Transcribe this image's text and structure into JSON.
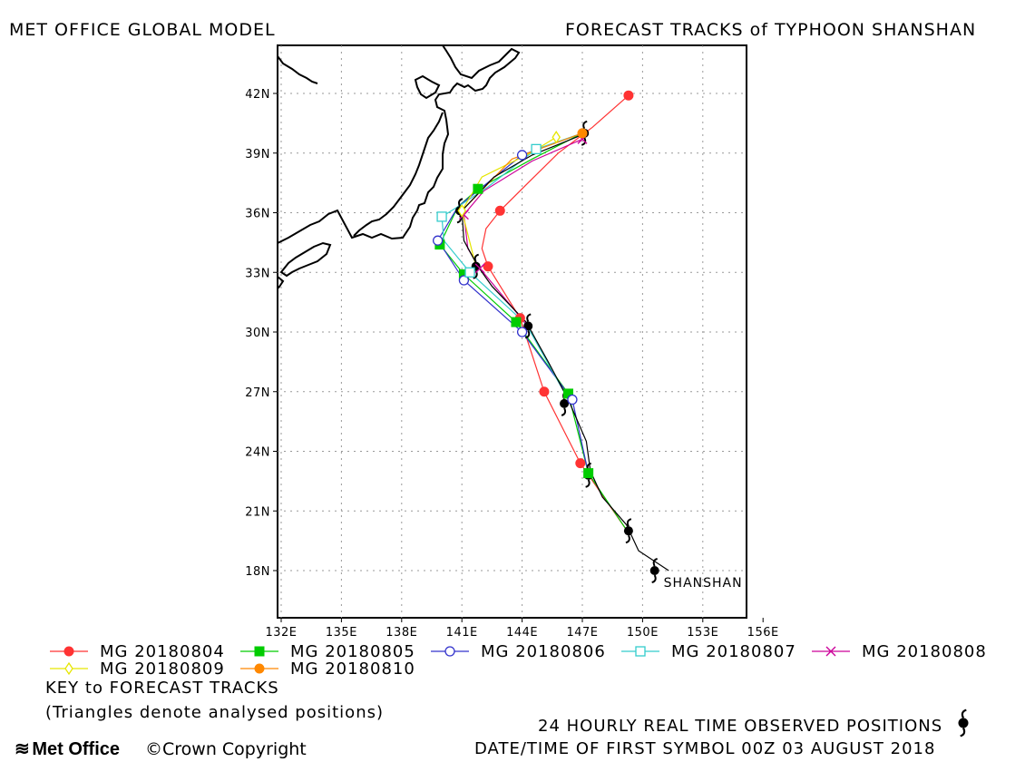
{
  "header": {
    "left_title": "MET OFFICE GLOBAL MODEL",
    "right_title": "FORECAST TRACKS of TYPHOON SHANSHAN"
  },
  "chart_data": {
    "type": "map-track",
    "xlim": [
      131.5,
      160.0
    ],
    "ylim": [
      15.6,
      44.5
    ],
    "x_ticks": [
      "132E",
      "135E",
      "138E",
      "141E",
      "144E",
      "147E",
      "150E",
      "153E",
      "156E"
    ],
    "x_tick_values": [
      132,
      135,
      138,
      141,
      144,
      147,
      150,
      153,
      156
    ],
    "y_ticks": [
      "42N",
      "39N",
      "36N",
      "33N",
      "30N",
      "27N",
      "24N",
      "21N",
      "18N"
    ],
    "y_tick_values": [
      42,
      39,
      36,
      33,
      30,
      27,
      24,
      21,
      18
    ],
    "grid": true,
    "storm_label": "SHANSHAN",
    "observed_track": {
      "name": "24 HOURLY REAL TIME OBSERVED POSITIONS",
      "color": "#000000",
      "points": [
        [
          151.3,
          18.0
        ],
        [
          149.8,
          19.0
        ],
        [
          149.2,
          20.3
        ],
        [
          148.0,
          21.7
        ],
        [
          147.4,
          23.0
        ],
        [
          147.2,
          24.5
        ],
        [
          146.3,
          26.6
        ],
        [
          145.3,
          28.5
        ],
        [
          144.2,
          30.5
        ],
        [
          142.5,
          32.3
        ],
        [
          141.8,
          33.3
        ],
        [
          141.1,
          34.6
        ],
        [
          141.0,
          36.1
        ],
        [
          142.6,
          37.8
        ],
        [
          144.5,
          38.9
        ],
        [
          147.2,
          40.0
        ]
      ],
      "symbols": [
        [
          150.6,
          18.0
        ],
        [
          149.3,
          20.0
        ],
        [
          147.3,
          22.8
        ],
        [
          146.1,
          26.4
        ],
        [
          144.3,
          30.3
        ],
        [
          141.7,
          33.3
        ],
        [
          140.9,
          36.1
        ],
        [
          147.1,
          40.0
        ]
      ]
    },
    "series": [
      {
        "name": "MG 20180804",
        "color": "#ff3333",
        "marker": "filled-circle",
        "points": [
          [
            149.3,
            19.9
          ],
          [
            146.9,
            23.4
          ],
          [
            145.1,
            27.0
          ],
          [
            143.9,
            30.7
          ],
          [
            142.3,
            33.3
          ],
          [
            142.0,
            34.2
          ],
          [
            142.2,
            35.2
          ],
          [
            142.9,
            36.1
          ],
          [
            144.3,
            37.5
          ],
          [
            145.8,
            39.0
          ],
          [
            147.5,
            40.3
          ],
          [
            149.3,
            41.9
          ]
        ],
        "markers": [
          [
            146.9,
            23.4
          ],
          [
            145.1,
            27.0
          ],
          [
            143.9,
            30.7
          ],
          [
            142.3,
            33.3
          ],
          [
            142.9,
            36.1
          ],
          [
            149.3,
            41.9
          ]
        ]
      },
      {
        "name": "MG 20180805",
        "color": "#00cc00",
        "marker": "filled-square",
        "points": [
          [
            149.3,
            19.9
          ],
          [
            147.3,
            22.9
          ],
          [
            146.3,
            26.9
          ],
          [
            143.7,
            30.5
          ],
          [
            141.1,
            32.9
          ],
          [
            139.9,
            34.4
          ],
          [
            140.8,
            36.3
          ],
          [
            141.8,
            37.2
          ],
          [
            144.5,
            38.7
          ],
          [
            147.0,
            40.0
          ]
        ],
        "markers": [
          [
            147.3,
            22.9
          ],
          [
            146.3,
            26.9
          ],
          [
            143.7,
            30.5
          ],
          [
            141.1,
            32.9
          ],
          [
            139.9,
            34.4
          ],
          [
            141.8,
            37.2
          ]
        ]
      },
      {
        "name": "MG 20180806",
        "color": "#3333cc",
        "marker": "open-circle",
        "points": [
          [
            147.3,
            22.9
          ],
          [
            146.5,
            26.6
          ],
          [
            144.0,
            30.0
          ],
          [
            141.1,
            32.6
          ],
          [
            140.2,
            34.0
          ],
          [
            139.8,
            34.6
          ],
          [
            140.8,
            36.3
          ],
          [
            144.0,
            38.9
          ],
          [
            147.0,
            40.0
          ]
        ],
        "markers": [
          [
            146.5,
            26.6
          ],
          [
            144.0,
            30.0
          ],
          [
            141.1,
            32.6
          ],
          [
            139.8,
            34.6
          ],
          [
            144.0,
            38.9
          ]
        ]
      },
      {
        "name": "MG 20180807",
        "color": "#33cccc",
        "marker": "open-square",
        "points": [
          [
            146.3,
            26.6
          ],
          [
            144.2,
            30.4
          ],
          [
            141.4,
            33.0
          ],
          [
            140.1,
            34.6
          ],
          [
            140.0,
            35.8
          ],
          [
            140.8,
            36.3
          ],
          [
            142.3,
            37.3
          ],
          [
            144.7,
            39.2
          ],
          [
            147.0,
            40.0
          ]
        ],
        "markers": [
          [
            141.4,
            33.0
          ],
          [
            140.0,
            35.8
          ],
          [
            144.7,
            39.2
          ]
        ]
      },
      {
        "name": "MG 20180808",
        "color": "#cc0099",
        "marker": "cross",
        "points": [
          [
            144.2,
            30.4
          ],
          [
            141.9,
            33.2
          ],
          [
            141.3,
            34.2
          ],
          [
            141.1,
            35.9
          ],
          [
            142.1,
            37.1
          ],
          [
            144.5,
            38.6
          ],
          [
            147.0,
            39.7
          ]
        ],
        "markers": [
          [
            141.9,
            33.2
          ],
          [
            141.1,
            35.9
          ],
          [
            147.0,
            39.7
          ]
        ]
      },
      {
        "name": "MG 20180809",
        "color": "#e6e600",
        "marker": "open-diamond",
        "points": [
          [
            141.7,
            33.3
          ],
          [
            141.0,
            36.1
          ],
          [
            142.0,
            37.8
          ],
          [
            144.4,
            39.0
          ],
          [
            145.7,
            39.8
          ]
        ],
        "markers": [
          [
            141.0,
            36.1
          ],
          [
            145.7,
            39.8
          ]
        ]
      },
      {
        "name": "MG 20180810",
        "color": "#ff8800",
        "marker": "filled-circle",
        "points": [
          [
            141.0,
            36.1
          ],
          [
            143.5,
            38.7
          ],
          [
            147.0,
            40.0
          ]
        ],
        "markers": [
          [
            147.0,
            40.0
          ]
        ]
      }
    ]
  },
  "legend": {
    "row1": [
      "MG 20180804",
      "MG 20180805",
      "MG 20180806",
      "MG 20180807",
      "MG 20180808"
    ],
    "row2": [
      "MG 20180809",
      "MG 20180810"
    ]
  },
  "notes": {
    "key_title": "KEY to FORECAST TRACKS",
    "triangles": "(Triangles denote analysed positions)",
    "observed": "24 HOURLY REAL TIME OBSERVED POSITIONS",
    "datetime": "DATE/TIME OF FIRST SYMBOL 00Z 03 AUGUST 2018"
  },
  "footer": {
    "logo_text": "Met Office",
    "copyright": "Crown Copyright"
  }
}
